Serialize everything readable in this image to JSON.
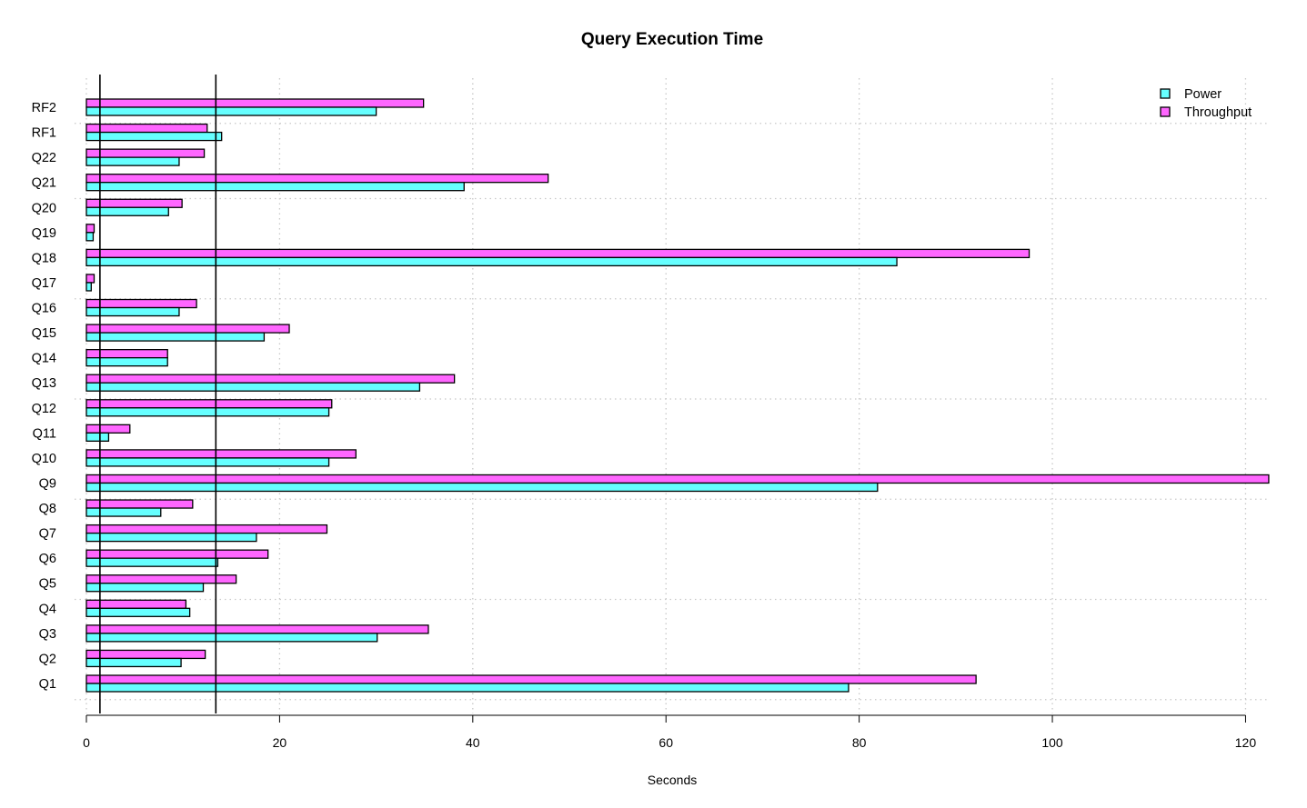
{
  "chart_data": {
    "type": "bar",
    "orientation": "horizontal",
    "title": "Query Execution Time",
    "xlabel": "Seconds",
    "ylabel": "",
    "xlim": [
      0,
      122.5
    ],
    "xticks": [
      0,
      20,
      40,
      60,
      80,
      100,
      120
    ],
    "grid": true,
    "legend_position": "top-right",
    "categories": [
      "Q1",
      "Q2",
      "Q3",
      "Q4",
      "Q5",
      "Q6",
      "Q7",
      "Q8",
      "Q9",
      "Q10",
      "Q11",
      "Q12",
      "Q13",
      "Q14",
      "Q15",
      "Q16",
      "Q17",
      "Q18",
      "Q19",
      "Q20",
      "Q21",
      "Q22",
      "RF1",
      "RF2"
    ],
    "series": [
      {
        "name": "Power",
        "color": "#66ffff",
        "values": [
          78.9,
          9.8,
          30.1,
          10.7,
          12.1,
          13.6,
          17.6,
          7.7,
          81.9,
          25.1,
          2.3,
          25.1,
          34.5,
          8.4,
          18.4,
          9.6,
          0.5,
          83.9,
          0.7,
          8.5,
          39.1,
          9.6,
          14.0,
          30.0
        ]
      },
      {
        "name": "Throughput",
        "color": "#ff66ff",
        "values": [
          92.1,
          12.3,
          35.4,
          10.3,
          15.5,
          18.8,
          24.9,
          11.0,
          122.4,
          27.9,
          4.5,
          25.4,
          38.1,
          8.4,
          21.0,
          11.4,
          0.8,
          97.6,
          0.8,
          9.9,
          47.8,
          12.2,
          12.5,
          34.9
        ]
      }
    ],
    "reference_lines": [
      1.4,
      13.4
    ]
  }
}
